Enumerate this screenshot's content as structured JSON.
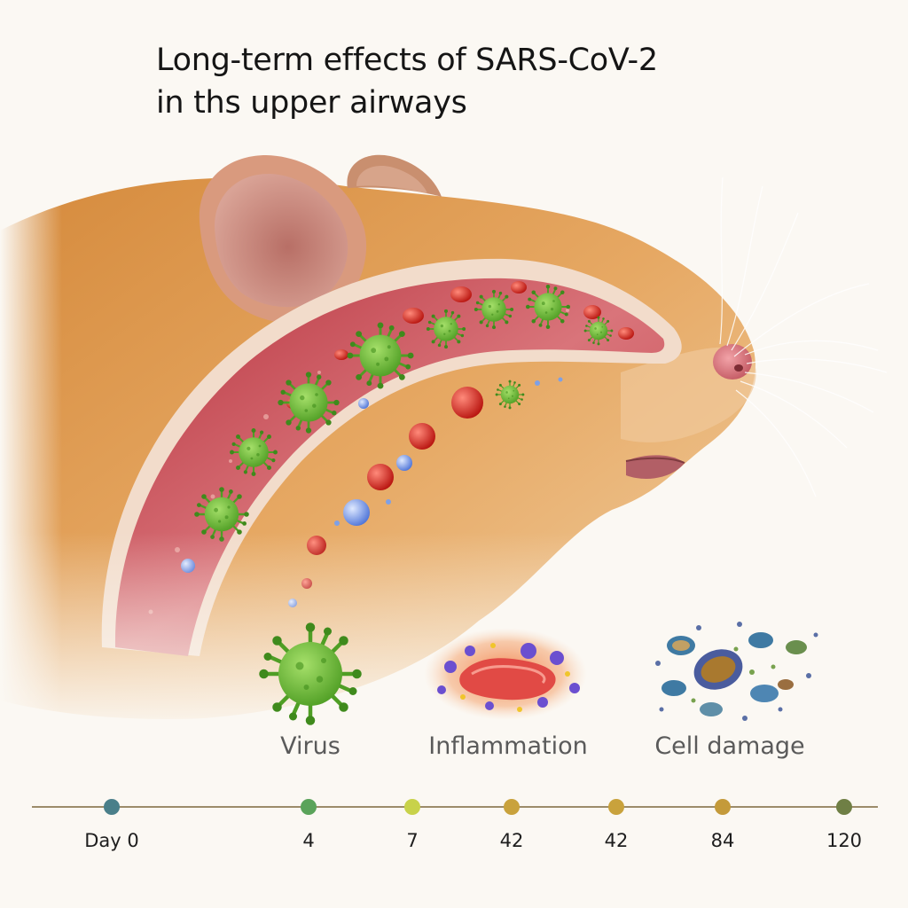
{
  "title": {
    "line1": "Long-term effects of SARS-CoV-2",
    "line2": "in ths upper airways"
  },
  "legend": [
    {
      "label": "Virus",
      "icon": "virus-icon",
      "color": "#6cc23a"
    },
    {
      "label": "Inflammation",
      "icon": "inflammation-icon",
      "color": "#e8583a"
    },
    {
      "label": "Cell damage",
      "icon": "cell-damage-icon",
      "color": "#3c6fa0"
    }
  ],
  "timeline": {
    "ticks": [
      {
        "label": "Day 0",
        "color": "#4a7f8a"
      },
      {
        "label": "4",
        "color": "#5aa35a"
      },
      {
        "label": "7",
        "color": "#c8d24a"
      },
      {
        "label": "42",
        "color": "#c9a23c"
      },
      {
        "label": "42",
        "color": "#c9a23c"
      },
      {
        "label": "84",
        "color": "#c49a3a"
      },
      {
        "label": "120",
        "color": "#6f7f45"
      }
    ]
  },
  "colors": {
    "fur": "#e0a05a",
    "ear": "#c98a7c",
    "tissue": "#c8454e",
    "virus": "#6cc23a",
    "red_cell": "#d42a22",
    "immune_cell": "#6a8ee8",
    "background": "#fbf8f3"
  }
}
